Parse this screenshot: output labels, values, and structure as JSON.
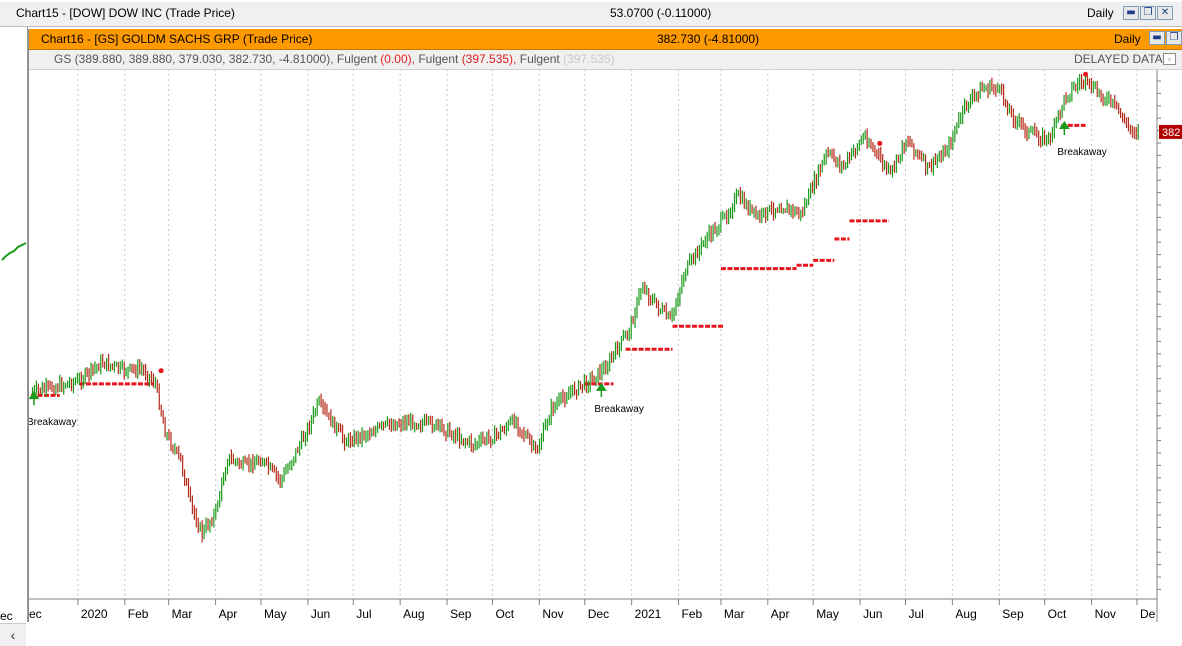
{
  "background_window": {
    "title": "Chart15 - [DOW] DOW INC (Trade Price)",
    "price": "53.0700 (-0.11000)",
    "period": "Daily",
    "axis_stub_label": "ec",
    "scroll_left_glyph": "‹",
    "window_buttons": [
      "▬",
      "❐",
      "✕"
    ]
  },
  "chart_window": {
    "title": "Chart16 - [GS] GOLDM SACHS GRP (Trade Price)",
    "price": "382.730 (-4.81000)",
    "period": "Daily",
    "title_bar_color": "#ff9900",
    "window_buttons": [
      "▬",
      "❐"
    ],
    "legend": {
      "symbol_values": "GS (389.880, 389.880, 379.030, 382.730, -4.81000),",
      "ind1_name": "Fulgent",
      "ind1_value": "(0.00),",
      "ind2_name": "Fulgent",
      "ind2_value": "(397.535),",
      "ind3_name": "Fulgent",
      "ind3_value": "(397.535)",
      "delayed_label": "DELAYED DATA",
      "button_glyph": "▫"
    }
  },
  "chart_data": {
    "type": "ohlc",
    "symbol": "GS",
    "title": "",
    "xlabel": "",
    "ylabel": "",
    "x_tick_labels": [
      "ec",
      "2020",
      "Feb",
      "Mar",
      "Apr",
      "May",
      "Jun",
      "Jul",
      "Aug",
      "Sep",
      "Oct",
      "Nov",
      "Dec",
      "2021",
      "Feb",
      "Mar",
      "Apr",
      "May",
      "Jun",
      "Jul",
      "Aug",
      "Sep",
      "Oct",
      "Nov",
      "De"
    ],
    "x_range": [
      "2019-12-01",
      "2021-12-03"
    ],
    "y_range": [
      120,
      420
    ],
    "last_price_label": "382",
    "grid": "vertical dashed at month starts",
    "colors": {
      "up": "#1c9a1c",
      "down": "#b52a1a",
      "signal": "#e8141e",
      "arrow": "#1c9a1c"
    },
    "annotations": [
      "Breakaway",
      "Breakaway",
      "Breakaway"
    ],
    "close_series": [
      {
        "date": "2019-12-02",
        "close": 225
      },
      {
        "date": "2019-12-16",
        "close": 228
      },
      {
        "date": "2020-01-02",
        "close": 232
      },
      {
        "date": "2020-01-17",
        "close": 243
      },
      {
        "date": "2020-01-31",
        "close": 238
      },
      {
        "date": "2020-02-12",
        "close": 239
      },
      {
        "date": "2020-02-21",
        "close": 231
      },
      {
        "date": "2020-02-28",
        "close": 200
      },
      {
        "date": "2020-03-09",
        "close": 183
      },
      {
        "date": "2020-03-16",
        "close": 155
      },
      {
        "date": "2020-03-23",
        "close": 139
      },
      {
        "date": "2020-04-01",
        "close": 152
      },
      {
        "date": "2020-04-09",
        "close": 185
      },
      {
        "date": "2020-04-20",
        "close": 180
      },
      {
        "date": "2020-05-01",
        "close": 184
      },
      {
        "date": "2020-05-14",
        "close": 171
      },
      {
        "date": "2020-05-29",
        "close": 197
      },
      {
        "date": "2020-06-08",
        "close": 218
      },
      {
        "date": "2020-06-26",
        "close": 195
      },
      {
        "date": "2020-07-10",
        "close": 200
      },
      {
        "date": "2020-07-24",
        "close": 205
      },
      {
        "date": "2020-08-07",
        "close": 207
      },
      {
        "date": "2020-08-24",
        "close": 205
      },
      {
        "date": "2020-09-04",
        "close": 200
      },
      {
        "date": "2020-09-18",
        "close": 193
      },
      {
        "date": "2020-10-02",
        "close": 198
      },
      {
        "date": "2020-10-16",
        "close": 208
      },
      {
        "date": "2020-10-30",
        "close": 188
      },
      {
        "date": "2020-11-09",
        "close": 215
      },
      {
        "date": "2020-11-20",
        "close": 224
      },
      {
        "date": "2020-12-04",
        "close": 232
      },
      {
        "date": "2020-12-15",
        "close": 240
      },
      {
        "date": "2020-12-31",
        "close": 264
      },
      {
        "date": "2021-01-08",
        "close": 290
      },
      {
        "date": "2021-01-15",
        "close": 280
      },
      {
        "date": "2021-01-27",
        "close": 268
      },
      {
        "date": "2021-02-05",
        "close": 298
      },
      {
        "date": "2021-02-19",
        "close": 318
      },
      {
        "date": "2021-03-03",
        "close": 330
      },
      {
        "date": "2021-03-12",
        "close": 344
      },
      {
        "date": "2021-03-25",
        "close": 331
      },
      {
        "date": "2021-04-09",
        "close": 338
      },
      {
        "date": "2021-04-23",
        "close": 333
      },
      {
        "date": "2021-05-10",
        "close": 370
      },
      {
        "date": "2021-05-21",
        "close": 362
      },
      {
        "date": "2021-06-04",
        "close": 381
      },
      {
        "date": "2021-06-10",
        "close": 372
      },
      {
        "date": "2021-06-21",
        "close": 357
      },
      {
        "date": "2021-07-02",
        "close": 379
      },
      {
        "date": "2021-07-16",
        "close": 360
      },
      {
        "date": "2021-07-30",
        "close": 375
      },
      {
        "date": "2021-08-09",
        "close": 398
      },
      {
        "date": "2021-08-20",
        "close": 409
      },
      {
        "date": "2021-08-31",
        "close": 410
      },
      {
        "date": "2021-09-10",
        "close": 392
      },
      {
        "date": "2021-09-20",
        "close": 383
      },
      {
        "date": "2021-10-04",
        "close": 378
      },
      {
        "date": "2021-10-15",
        "close": 405
      },
      {
        "date": "2021-10-25",
        "close": 414
      },
      {
        "date": "2021-11-05",
        "close": 407
      },
      {
        "date": "2021-11-17",
        "close": 398
      },
      {
        "date": "2021-11-26",
        "close": 385
      },
      {
        "date": "2021-12-03",
        "close": 383
      }
    ],
    "signal_levels": [
      {
        "start": "2019-12-01",
        "end": "2019-12-20",
        "value": 223
      },
      {
        "start": "2020-01-02",
        "end": "2020-02-20",
        "value": 230
      },
      {
        "start": "2020-12-01",
        "end": "2020-12-20",
        "value": 230
      },
      {
        "start": "2020-12-28",
        "end": "2021-01-28",
        "value": 251
      },
      {
        "start": "2021-01-28",
        "end": "2021-03-03",
        "value": 265
      },
      {
        "start": "2021-03-01",
        "end": "2021-04-20",
        "value": 300
      },
      {
        "start": "2021-04-20",
        "end": "2021-05-01",
        "value": 302
      },
      {
        "start": "2021-05-01",
        "end": "2021-05-15",
        "value": 305
      },
      {
        "start": "2021-05-15",
        "end": "2021-05-25",
        "value": 318
      },
      {
        "start": "2021-05-25",
        "end": "2021-06-20",
        "value": 329
      },
      {
        "start": "2021-10-12",
        "end": "2021-10-28",
        "value": 387
      }
    ]
  }
}
